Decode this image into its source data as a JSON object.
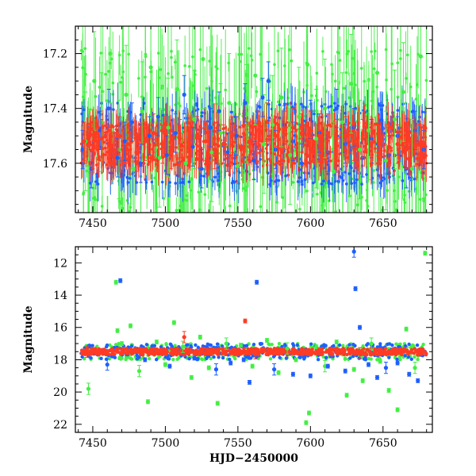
{
  "figure": {
    "shared_xlabel": "HJD−2450000"
  },
  "colors": {
    "green": "#44ee44",
    "blue": "#1f5fff",
    "red": "#ff3b24"
  },
  "chart_data": [
    {
      "type": "scatter",
      "panel": "top",
      "title": "",
      "xlabel": "",
      "ylabel": "Magnitude",
      "xlim": [
        7438,
        7684
      ],
      "ylim": [
        17.1,
        17.78
      ],
      "y_inverted": true,
      "xticks": [
        7450,
        7500,
        7550,
        7600,
        7650
      ],
      "yticks": [
        17.2,
        17.4,
        17.6
      ],
      "grid": false,
      "error_bars": true,
      "series": [
        {
          "color": "green",
          "points": [
            [
              7445,
              17.52
            ],
            [
              7451,
              17.3
            ],
            [
              7456,
              17.45
            ],
            [
              7462,
              17.2
            ],
            [
              7468,
              17.55
            ],
            [
              7473,
              17.35
            ],
            [
              7478,
              17.62
            ],
            [
              7484,
              17.41
            ],
            [
              7490,
              17.25
            ],
            [
              7496,
              17.58
            ],
            [
              7502,
              17.47
            ],
            [
              7508,
              17.33
            ],
            [
              7514,
              17.6
            ],
            [
              7520,
              17.44
            ],
            [
              7526,
              17.22
            ],
            [
              7532,
              17.56
            ],
            [
              7538,
              17.49
            ],
            [
              7544,
              17.38
            ],
            [
              7550,
              17.61
            ],
            [
              7556,
              17.42
            ],
            [
              7562,
              17.28
            ],
            [
              7568,
              17.53
            ],
            [
              7574,
              17.46
            ],
            [
              7580,
              17.36
            ],
            [
              7586,
              17.57
            ],
            [
              7592,
              17.43
            ],
            [
              7598,
              17.24
            ],
            [
              7604,
              17.51
            ],
            [
              7610,
              17.4
            ],
            [
              7616,
              17.63
            ],
            [
              7622,
              17.45
            ],
            [
              7628,
              17.31
            ],
            [
              7634,
              17.55
            ],
            [
              7640,
              17.48
            ],
            [
              7646,
              17.27
            ],
            [
              7652,
              17.59
            ],
            [
              7658,
              17.44
            ],
            [
              7664,
              17.34
            ],
            [
              7670,
              17.62
            ],
            [
              7676,
              17.21
            ]
          ]
        },
        {
          "color": "blue",
          "points": [
            [
              7443,
              17.55
            ],
            [
              7449,
              17.62
            ],
            [
              7455,
              17.48
            ],
            [
              7461,
              17.4
            ],
            [
              7467,
              17.58
            ],
            [
              7472,
              17.52
            ],
            [
              7477,
              17.45
            ],
            [
              7483,
              17.6
            ],
            [
              7489,
              17.5
            ],
            [
              7495,
              17.43
            ],
            [
              7501,
              17.57
            ],
            [
              7507,
              17.49
            ],
            [
              7513,
              17.35
            ],
            [
              7519,
              17.54
            ],
            [
              7525,
              17.62
            ],
            [
              7531,
              17.47
            ],
            [
              7537,
              17.41
            ],
            [
              7543,
              17.56
            ],
            [
              7549,
              17.5
            ],
            [
              7555,
              17.38
            ],
            [
              7561,
              17.59
            ],
            [
              7567,
              17.36
            ],
            [
              7571,
              17.3
            ],
            [
              7576,
              17.55
            ],
            [
              7582,
              17.46
            ],
            [
              7588,
              17.52
            ],
            [
              7594,
              17.6
            ],
            [
              7600,
              17.44
            ],
            [
              7606,
              17.49
            ],
            [
              7612,
              17.56
            ],
            [
              7618,
              17.4
            ],
            [
              7624,
              17.53
            ],
            [
              7630,
              17.47
            ],
            [
              7636,
              17.58
            ],
            [
              7642,
              17.51
            ],
            [
              7648,
              17.45
            ],
            [
              7654,
              17.57
            ],
            [
              7660,
              17.5
            ],
            [
              7666,
              17.62
            ],
            [
              7672,
              17.48
            ],
            [
              7678,
              17.55
            ]
          ]
        },
        {
          "color": "red",
          "points": [
            [
              7444,
              17.52
            ],
            [
              7450,
              17.55
            ],
            [
              7456,
              17.51
            ],
            [
              7462,
              17.54
            ],
            [
              7468,
              17.5
            ],
            [
              7474,
              17.53
            ],
            [
              7480,
              17.56
            ],
            [
              7486,
              17.52
            ],
            [
              7492,
              17.49
            ],
            [
              7498,
              17.53
            ],
            [
              7504,
              17.55
            ],
            [
              7510,
              17.51
            ],
            [
              7516,
              17.54
            ],
            [
              7522,
              17.5
            ],
            [
              7528,
              17.52
            ],
            [
              7534,
              17.55
            ],
            [
              7540,
              17.53
            ],
            [
              7546,
              17.5
            ],
            [
              7552,
              17.54
            ],
            [
              7558,
              17.52
            ],
            [
              7564,
              17.48
            ],
            [
              7570,
              17.45
            ],
            [
              7576,
              17.5
            ],
            [
              7582,
              17.48
            ],
            [
              7588,
              17.47
            ],
            [
              7594,
              17.49
            ],
            [
              7600,
              17.48
            ],
            [
              7606,
              17.5
            ],
            [
              7612,
              17.49
            ],
            [
              7618,
              17.51
            ],
            [
              7624,
              17.5
            ],
            [
              7630,
              17.52
            ],
            [
              7636,
              17.51
            ],
            [
              7642,
              17.53
            ],
            [
              7648,
              17.52
            ],
            [
              7654,
              17.54
            ],
            [
              7660,
              17.53
            ],
            [
              7666,
              17.55
            ],
            [
              7672,
              17.54
            ],
            [
              7678,
              17.53
            ]
          ]
        }
      ]
    },
    {
      "type": "scatter",
      "panel": "bottom",
      "title": "",
      "xlabel": "HJD−2450000",
      "ylabel": "Magnitude",
      "xlim": [
        7438,
        7684
      ],
      "ylim": [
        11,
        22.5
      ],
      "y_inverted": true,
      "xticks": [
        7450,
        7500,
        7550,
        7600,
        7650
      ],
      "yticks": [
        12,
        14,
        16,
        18,
        20,
        22
      ],
      "grid": false,
      "error_bars": true,
      "series": [
        {
          "color": "green",
          "points": [
            [
              7447,
              19.8
            ],
            [
              7466,
              13.2
            ],
            [
              7467,
              16.2
            ],
            [
              7470,
              17.0
            ],
            [
              7476,
              15.9
            ],
            [
              7482,
              18.7
            ],
            [
              7488,
              20.6
            ],
            [
              7494,
              16.9
            ],
            [
              7500,
              18.3
            ],
            [
              7506,
              15.7
            ],
            [
              7512,
              17.2
            ],
            [
              7518,
              19.1
            ],
            [
              7524,
              16.6
            ],
            [
              7530,
              18.5
            ],
            [
              7536,
              20.7
            ],
            [
              7542,
              17.0
            ],
            [
              7552,
              17.1
            ],
            [
              7560,
              18.4
            ],
            [
              7570,
              16.8
            ],
            [
              7578,
              18.8
            ],
            [
              7584,
              17.3
            ],
            [
              7590,
              18.0
            ],
            [
              7597,
              21.9
            ],
            [
              7599,
              21.3
            ],
            [
              7604,
              17.2
            ],
            [
              7610,
              18.4
            ],
            [
              7618,
              16.9
            ],
            [
              7625,
              20.2
            ],
            [
              7630,
              18.6
            ],
            [
              7636,
              19.3
            ],
            [
              7642,
              17.0
            ],
            [
              7648,
              18.1
            ],
            [
              7654,
              19.9
            ],
            [
              7660,
              21.1
            ],
            [
              7666,
              16.1
            ],
            [
              7672,
              18.5
            ],
            [
              7679,
              11.4
            ]
          ]
        },
        {
          "color": "blue",
          "points": [
            [
              7460,
              18.3
            ],
            [
              7469,
              13.1
            ],
            [
              7486,
              18.0
            ],
            [
              7503,
              18.4
            ],
            [
              7520,
              17.9
            ],
            [
              7535,
              18.6
            ],
            [
              7545,
              18.2
            ],
            [
              7554,
              18.0
            ],
            [
              7558,
              19.4
            ],
            [
              7563,
              13.2
            ],
            [
              7575,
              18.6
            ],
            [
              7588,
              18.9
            ],
            [
              7600,
              19.0
            ],
            [
              7612,
              18.4
            ],
            [
              7624,
              18.7
            ],
            [
              7630,
              11.3
            ],
            [
              7631,
              13.6
            ],
            [
              7634,
              16.0
            ],
            [
              7640,
              18.3
            ],
            [
              7646,
              19.1
            ],
            [
              7652,
              18.5
            ],
            [
              7660,
              18.2
            ],
            [
              7668,
              18.9
            ],
            [
              7674,
              19.3
            ]
          ]
        },
        {
          "color": "red",
          "points": [
            [
              7446,
              17.5
            ],
            [
              7460,
              17.5
            ],
            [
              7475,
              17.5
            ],
            [
              7490,
              17.4
            ],
            [
              7505,
              17.5
            ],
            [
              7513,
              16.6
            ],
            [
              7520,
              17.6
            ],
            [
              7535,
              17.5
            ],
            [
              7548,
              17.4
            ],
            [
              7555,
              15.6
            ],
            [
              7562,
              17.6
            ],
            [
              7578,
              17.5
            ],
            [
              7592,
              17.6
            ],
            [
              7606,
              17.4
            ],
            [
              7620,
              17.5
            ],
            [
              7634,
              17.6
            ],
            [
              7648,
              17.4
            ],
            [
              7662,
              17.5
            ],
            [
              7676,
              17.6
            ]
          ]
        }
      ]
    }
  ]
}
